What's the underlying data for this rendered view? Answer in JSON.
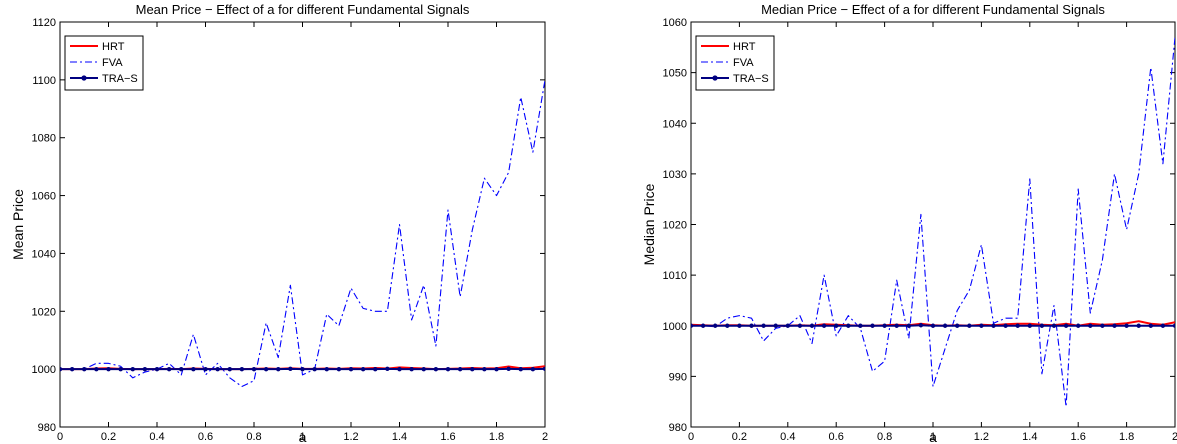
{
  "chart_data": [
    {
      "type": "line",
      "title": "Mean Price − Effect of a for different Fundamental Signals",
      "xlabel": "a",
      "ylabel": "Mean Price",
      "xlim": [
        0,
        2
      ],
      "ylim": [
        980,
        1120
      ],
      "xticks": [
        0,
        0.2,
        0.4,
        0.6,
        0.8,
        1,
        1.2,
        1.4,
        1.6,
        1.8,
        2
      ],
      "xtick_labels": [
        "0",
        "0.2",
        "0.4",
        "0.6",
        "0.8",
        "1",
        "1.2",
        "1.4",
        "1.6",
        "1.8",
        "2"
      ],
      "yticks": [
        980,
        1000,
        1020,
        1040,
        1060,
        1080,
        1100,
        1120
      ],
      "ytick_labels": [
        "980",
        "1000",
        "1020",
        "1040",
        "1060",
        "1080",
        "1100",
        "1120"
      ],
      "legend_position": "top-left",
      "grid": false,
      "x": [
        0,
        0.05,
        0.1,
        0.15,
        0.2,
        0.25,
        0.3,
        0.35,
        0.4,
        0.45,
        0.5,
        0.55,
        0.6,
        0.65,
        0.7,
        0.75,
        0.8,
        0.85,
        0.9,
        0.95,
        1,
        1.05,
        1.1,
        1.15,
        1.2,
        1.25,
        1.3,
        1.35,
        1.4,
        1.45,
        1.5,
        1.55,
        1.6,
        1.65,
        1.7,
        1.75,
        1.8,
        1.85,
        1.9,
        1.95,
        2
      ],
      "series": [
        {
          "name": "HRT",
          "color": "#ff0000",
          "style": "solid",
          "marker": "none",
          "values": [
            1000,
            1000,
            1000,
            1000.2,
            1000.3,
            1000.1,
            1000,
            1000,
            1000,
            1000.1,
            1000,
            1000.2,
            1000.1,
            1000,
            1000,
            1000,
            1000.1,
            1000.2,
            1000.1,
            1000.3,
            1000.1,
            1000.1,
            1000.2,
            1000.1,
            1000.3,
            1000.2,
            1000.4,
            1000.2,
            1000.6,
            1000.4,
            1000.2,
            1000,
            1000.1,
            1000.2,
            1000.4,
            1000.2,
            1000.3,
            1000.9,
            1000.3,
            1000.5,
            1001
          ]
        },
        {
          "name": "FVA",
          "color": "#0000ff",
          "style": "dash-dot",
          "marker": "none",
          "values": [
            1000,
            1000,
            1000,
            1002,
            1002,
            1001,
            997,
            999,
            1000,
            1002,
            998,
            1012,
            998,
            1002,
            997,
            994,
            996,
            1016,
            1004,
            1029,
            998,
            1000,
            1019,
            1015,
            1028,
            1021,
            1020,
            1020,
            1050,
            1017,
            1029,
            1008,
            1055,
            1025,
            1048,
            1066,
            1060,
            1068,
            1094,
            1075,
            1100
          ]
        },
        {
          "name": "TRA−S",
          "color": "#000080",
          "style": "solid",
          "marker": "dot",
          "values": [
            1000,
            1000,
            1000,
            1000,
            1000,
            1000,
            1000,
            1000,
            1000,
            1000,
            1000,
            1000,
            1000,
            1000,
            1000,
            1000,
            1000,
            1000,
            1000,
            1000.1,
            1000,
            1000,
            1000,
            1000,
            1000,
            1000,
            1000,
            1000.1,
            1000,
            1000,
            1000,
            1000,
            1000,
            1000,
            1000,
            1000,
            1000,
            1000.1,
            1000,
            1000,
            1000.1
          ]
        }
      ]
    },
    {
      "type": "line",
      "title": "Median Price − Effect of a for different Fundamental Signals",
      "xlabel": "a",
      "ylabel": "Median Price",
      "xlim": [
        0,
        2
      ],
      "ylim": [
        980,
        1060
      ],
      "xticks": [
        0,
        0.2,
        0.4,
        0.6,
        0.8,
        1,
        1.2,
        1.4,
        1.6,
        1.8,
        2
      ],
      "xtick_labels": [
        "0",
        "0.2",
        "0.4",
        "0.6",
        "0.8",
        "1",
        "1.2",
        "1.4",
        "1.6",
        "1.8",
        "2"
      ],
      "yticks": [
        980,
        990,
        1000,
        1010,
        1020,
        1030,
        1040,
        1050,
        1060
      ],
      "ytick_labels": [
        "980",
        "990",
        "1000",
        "1010",
        "1020",
        "1030",
        "1040",
        "1050",
        "1060"
      ],
      "legend_position": "top-left",
      "grid": false,
      "x": [
        0,
        0.05,
        0.1,
        0.15,
        0.2,
        0.25,
        0.3,
        0.35,
        0.4,
        0.45,
        0.5,
        0.55,
        0.6,
        0.65,
        0.7,
        0.75,
        0.8,
        0.85,
        0.9,
        0.95,
        1,
        1.05,
        1.1,
        1.15,
        1.2,
        1.25,
        1.3,
        1.35,
        1.4,
        1.45,
        1.5,
        1.55,
        1.6,
        1.65,
        1.7,
        1.75,
        1.8,
        1.85,
        1.9,
        1.95,
        2
      ],
      "series": [
        {
          "name": "HRT",
          "color": "#ff0000",
          "style": "solid",
          "marker": "none",
          "values": [
            1000.2,
            1000.1,
            1000,
            1000.1,
            1000.1,
            1000,
            1000,
            1000,
            1000,
            1000.1,
            1000,
            1000.3,
            1000.2,
            1000.1,
            1000,
            1000,
            1000.1,
            1000.2,
            1000.1,
            1000.4,
            1000.1,
            1000,
            1000.1,
            1000,
            1000.2,
            1000.1,
            1000.3,
            1000.4,
            1000.4,
            1000.2,
            1000.1,
            1000.4,
            1000,
            1000.4,
            1000.2,
            1000.3,
            1000.5,
            1000.9,
            1000.4,
            1000.2,
            1000.7
          ]
        },
        {
          "name": "FVA",
          "color": "#0000ff",
          "style": "dash-dot",
          "marker": "none",
          "values": [
            1000.2,
            1000,
            999.8,
            1001.5,
            1002,
            1001.5,
            997,
            999.5,
            1000,
            1002,
            996.5,
            1010,
            998,
            1002,
            999.5,
            991,
            993,
            1009,
            997.5,
            1022,
            988,
            995.5,
            1003,
            1007,
            1016,
            1000.5,
            1001.5,
            1001.5,
            1029,
            990.5,
            1004,
            984,
            1027,
            1002.5,
            1013,
            1030,
            1019,
            1030,
            1051,
            1032,
            1057
          ]
        },
        {
          "name": "TRA−S",
          "color": "#000080",
          "style": "solid",
          "marker": "dot",
          "values": [
            1000,
            1000,
            1000,
            1000,
            1000,
            1000,
            1000,
            1000,
            1000,
            1000,
            1000,
            1000,
            1000,
            1000,
            1000,
            1000,
            1000,
            1000,
            1000,
            1000.1,
            1000,
            1000,
            1000,
            1000,
            1000,
            1000,
            1000,
            1000,
            1000,
            1000,
            1000,
            1000,
            1000,
            1000,
            1000,
            1000,
            1000,
            1000,
            1000,
            1000,
            1000
          ]
        }
      ]
    }
  ]
}
